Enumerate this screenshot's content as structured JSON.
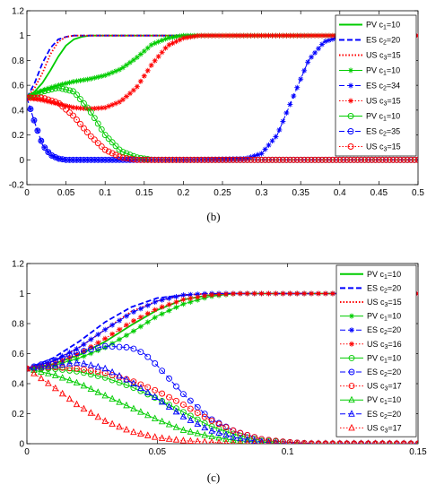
{
  "chart_data": [
    {
      "type": "line",
      "caption": "(b)",
      "xlim": [
        0,
        0.5
      ],
      "ylim": [
        -0.2,
        1.2
      ],
      "x_ticks": [
        "0",
        "0.05",
        "0.1",
        "0.15",
        "0.2",
        "0.25",
        "0.3",
        "0.35",
        "0.4",
        "0.45",
        "0.5"
      ],
      "y_ticks": [
        "-0.2",
        "0",
        "0.2",
        "0.4",
        "0.6",
        "0.8",
        "1",
        "1.2"
      ],
      "grid": false,
      "legend_position": "top-right",
      "series": [
        {
          "name": "PV c1=10",
          "label_main": "PV c",
          "label_sub": "1",
          "label_value": "=10",
          "color": "#00cc00",
          "dash": "solid",
          "marker": "none",
          "x": [
            0,
            0.01,
            0.02,
            0.03,
            0.04,
            0.05,
            0.06,
            0.07,
            0.08,
            0.1,
            0.15,
            0.2,
            0.3,
            0.4,
            0.5
          ],
          "y": [
            0.5,
            0.55,
            0.62,
            0.72,
            0.83,
            0.92,
            0.97,
            0.99,
            1,
            1,
            1,
            1,
            1,
            1,
            1
          ]
        },
        {
          "name": "ES c2=20",
          "label_main": "ES c",
          "label_sub": "2",
          "label_value": "=20",
          "color": "#0000ff",
          "dash": "dashed",
          "marker": "none",
          "x": [
            0,
            0.01,
            0.02,
            0.03,
            0.04,
            0.05,
            0.06,
            0.08,
            0.1,
            0.2,
            0.3,
            0.4,
            0.5
          ],
          "y": [
            0.5,
            0.62,
            0.78,
            0.9,
            0.97,
            0.99,
            1,
            1,
            1,
            1,
            1,
            1,
            1
          ]
        },
        {
          "name": "US c3=15",
          "label_main": "US c",
          "label_sub": "3",
          "label_value": "=15",
          "color": "#ff0000",
          "dash": "dotted",
          "marker": "none",
          "x": [
            0,
            0.01,
            0.02,
            0.03,
            0.04,
            0.05,
            0.06,
            0.08,
            0.1,
            0.2,
            0.3,
            0.4,
            0.5
          ],
          "y": [
            0.5,
            0.58,
            0.7,
            0.85,
            0.95,
            0.99,
            1,
            1,
            1,
            1,
            1,
            1,
            1
          ]
        },
        {
          "name": "PV c1=10",
          "label_main": "PV c",
          "label_sub": "1",
          "label_value": "=10",
          "color": "#00cc00",
          "dash": "solid",
          "marker": "star",
          "x": [
            0,
            0.02,
            0.04,
            0.06,
            0.08,
            0.1,
            0.12,
            0.14,
            0.16,
            0.18,
            0.2,
            0.25,
            0.3,
            0.4,
            0.5
          ],
          "y": [
            0.5,
            0.56,
            0.6,
            0.63,
            0.65,
            0.68,
            0.73,
            0.82,
            0.93,
            0.98,
            1,
            1,
            1,
            1,
            1
          ]
        },
        {
          "name": "ES c2=34",
          "label_main": "ES c",
          "label_sub": "2",
          "label_value": "=34",
          "color": "#0000ff",
          "dash": "dashed",
          "marker": "star",
          "x": [
            0,
            0.01,
            0.02,
            0.03,
            0.04,
            0.05,
            0.1,
            0.2,
            0.28,
            0.3,
            0.32,
            0.34,
            0.36,
            0.38,
            0.4,
            0.42,
            0.45,
            0.5
          ],
          "y": [
            0.5,
            0.3,
            0.12,
            0.04,
            0.01,
            0,
            0,
            0,
            0.01,
            0.05,
            0.2,
            0.5,
            0.8,
            0.95,
            0.99,
            1,
            1,
            1
          ]
        },
        {
          "name": "US c3=15",
          "label_main": "US c",
          "label_sub": "3",
          "label_value": "=15",
          "color": "#ff0000",
          "dash": "dotted",
          "marker": "star",
          "x": [
            0,
            0.02,
            0.04,
            0.06,
            0.08,
            0.1,
            0.12,
            0.14,
            0.16,
            0.18,
            0.2,
            0.22,
            0.25,
            0.3,
            0.5
          ],
          "y": [
            0.5,
            0.48,
            0.45,
            0.42,
            0.41,
            0.42,
            0.47,
            0.58,
            0.77,
            0.92,
            0.98,
            1,
            1,
            1,
            1
          ]
        },
        {
          "name": "PV c1=10",
          "label_main": "PV c",
          "label_sub": "1",
          "label_value": "=10",
          "color": "#00cc00",
          "dash": "solid",
          "marker": "circle",
          "x": [
            0,
            0.02,
            0.04,
            0.06,
            0.08,
            0.1,
            0.12,
            0.14,
            0.16,
            0.2,
            0.3,
            0.4,
            0.5
          ],
          "y": [
            0.5,
            0.55,
            0.58,
            0.55,
            0.4,
            0.2,
            0.07,
            0.02,
            0,
            0,
            0,
            0,
            0
          ]
        },
        {
          "name": "ES c2=35",
          "label_main": "ES c",
          "label_sub": "2",
          "label_value": "=35",
          "color": "#0000ff",
          "dash": "dashed",
          "marker": "circle",
          "x": [
            0,
            0.01,
            0.02,
            0.03,
            0.04,
            0.05,
            0.1,
            0.2,
            0.3,
            0.4,
            0.5
          ],
          "y": [
            0.5,
            0.3,
            0.12,
            0.04,
            0.01,
            0,
            0,
            0,
            0,
            0,
            0
          ]
        },
        {
          "name": "US c3=15",
          "label_main": "US c",
          "label_sub": "3",
          "label_value": "=15",
          "color": "#ff0000",
          "dash": "dotted",
          "marker": "circle",
          "x": [
            0,
            0.02,
            0.04,
            0.06,
            0.08,
            0.1,
            0.12,
            0.14,
            0.16,
            0.2,
            0.3,
            0.4,
            0.5
          ],
          "y": [
            0.5,
            0.5,
            0.46,
            0.35,
            0.2,
            0.08,
            0.02,
            0,
            0,
            0,
            0,
            0,
            0
          ]
        }
      ]
    },
    {
      "type": "line",
      "caption": "(c)",
      "xlim": [
        0,
        0.15
      ],
      "ylim": [
        0,
        1.2
      ],
      "x_ticks": [
        "0",
        "0.05",
        "0.1",
        "0.15"
      ],
      "y_ticks": [
        "0",
        "0.2",
        "0.4",
        "0.6",
        "0.8",
        "1",
        "1.2"
      ],
      "grid": false,
      "legend_position": "top-right",
      "series": [
        {
          "name": "PV c1=10",
          "label_main": "PV c",
          "label_sub": "1",
          "label_value": "=10",
          "color": "#00cc00",
          "dash": "solid",
          "marker": "none",
          "x": [
            0,
            0.01,
            0.02,
            0.03,
            0.04,
            0.05,
            0.06,
            0.07,
            0.08,
            0.09,
            0.1,
            0.12,
            0.15
          ],
          "y": [
            0.5,
            0.53,
            0.59,
            0.68,
            0.79,
            0.89,
            0.96,
            0.99,
            1,
            1,
            1,
            1,
            1
          ]
        },
        {
          "name": "ES c2=20",
          "label_main": "ES c",
          "label_sub": "2",
          "label_value": "=20",
          "color": "#0000ff",
          "dash": "dashed",
          "marker": "none",
          "x": [
            0,
            0.01,
            0.02,
            0.03,
            0.04,
            0.05,
            0.06,
            0.07,
            0.08,
            0.1,
            0.12,
            0.15
          ],
          "y": [
            0.5,
            0.57,
            0.68,
            0.81,
            0.91,
            0.97,
            0.99,
            1,
            1,
            1,
            1,
            1
          ]
        },
        {
          "name": "US c3=15",
          "label_main": "US c",
          "label_sub": "3",
          "label_value": "=15",
          "color": "#ff0000",
          "dash": "dotted",
          "marker": "none",
          "x": [
            0,
            0.01,
            0.02,
            0.03,
            0.04,
            0.05,
            0.06,
            0.07,
            0.08,
            0.1,
            0.12,
            0.15
          ],
          "y": [
            0.5,
            0.55,
            0.64,
            0.76,
            0.88,
            0.95,
            0.99,
            1,
            1,
            1,
            1,
            1
          ]
        },
        {
          "name": "PV c1=10",
          "label_main": "PV c",
          "label_sub": "1",
          "label_value": "=10",
          "color": "#00cc00",
          "dash": "solid",
          "marker": "star",
          "x": [
            0,
            0.01,
            0.02,
            0.03,
            0.04,
            0.05,
            0.06,
            0.07,
            0.08,
            0.09,
            0.1,
            0.12,
            0.15
          ],
          "y": [
            0.5,
            0.52,
            0.57,
            0.64,
            0.74,
            0.85,
            0.93,
            0.98,
            1,
            1,
            1,
            1,
            1
          ]
        },
        {
          "name": "ES c2=20",
          "label_main": "ES c",
          "label_sub": "2",
          "label_value": "=20",
          "color": "#0000ff",
          "dash": "dashed",
          "marker": "star",
          "x": [
            0,
            0.01,
            0.02,
            0.03,
            0.04,
            0.05,
            0.06,
            0.07,
            0.08,
            0.1,
            0.12,
            0.15
          ],
          "y": [
            0.5,
            0.55,
            0.64,
            0.76,
            0.87,
            0.95,
            0.99,
            1,
            1,
            1,
            1,
            1
          ]
        },
        {
          "name": "US c3=16",
          "label_main": "US c",
          "label_sub": "3",
          "label_value": "=16",
          "color": "#ff0000",
          "dash": "dotted",
          "marker": "star",
          "x": [
            0,
            0.01,
            0.02,
            0.03,
            0.04,
            0.05,
            0.06,
            0.07,
            0.08,
            0.09,
            0.1,
            0.12,
            0.15
          ],
          "y": [
            0.5,
            0.53,
            0.6,
            0.7,
            0.81,
            0.9,
            0.96,
            0.99,
            1,
            1,
            1,
            1,
            1
          ]
        },
        {
          "name": "PV c1=10",
          "label_main": "PV c",
          "label_sub": "1",
          "label_value": "=10",
          "color": "#00cc00",
          "dash": "solid",
          "marker": "circle",
          "x": [
            0,
            0.01,
            0.02,
            0.03,
            0.04,
            0.05,
            0.06,
            0.07,
            0.08,
            0.09,
            0.1,
            0.11,
            0.12,
            0.15
          ],
          "y": [
            0.5,
            0.5,
            0.48,
            0.44,
            0.38,
            0.3,
            0.21,
            0.12,
            0.06,
            0.02,
            0.01,
            0,
            0,
            0
          ]
        },
        {
          "name": "ES c2=20",
          "label_main": "ES c",
          "label_sub": "2",
          "label_value": "=20",
          "color": "#0000ff",
          "dash": "dashed",
          "marker": "circle",
          "x": [
            0,
            0.01,
            0.02,
            0.03,
            0.04,
            0.045,
            0.05,
            0.06,
            0.07,
            0.08,
            0.09,
            0.1,
            0.11,
            0.12,
            0.15
          ],
          "y": [
            0.5,
            0.55,
            0.61,
            0.65,
            0.64,
            0.6,
            0.52,
            0.33,
            0.17,
            0.08,
            0.03,
            0.01,
            0,
            0,
            0
          ]
        },
        {
          "name": "US c3=17",
          "label_main": "US c",
          "label_sub": "3",
          "label_value": "=17",
          "color": "#ff0000",
          "dash": "dotted",
          "marker": "circle",
          "x": [
            0,
            0.01,
            0.02,
            0.03,
            0.04,
            0.05,
            0.06,
            0.07,
            0.08,
            0.09,
            0.1,
            0.11,
            0.12,
            0.15
          ],
          "y": [
            0.5,
            0.51,
            0.5,
            0.47,
            0.42,
            0.35,
            0.26,
            0.16,
            0.08,
            0.03,
            0.01,
            0,
            0,
            0
          ]
        },
        {
          "name": "PV c1=10",
          "label_main": "PV c",
          "label_sub": "1",
          "label_value": "=10",
          "color": "#00cc00",
          "dash": "solid",
          "marker": "triangle",
          "x": [
            0,
            0.01,
            0.02,
            0.03,
            0.04,
            0.05,
            0.06,
            0.07,
            0.08,
            0.09,
            0.1,
            0.12,
            0.15
          ],
          "y": [
            0.5,
            0.46,
            0.4,
            0.32,
            0.24,
            0.16,
            0.09,
            0.05,
            0.02,
            0.01,
            0,
            0,
            0
          ]
        },
        {
          "name": "ES c2=20",
          "label_main": "ES c",
          "label_sub": "2",
          "label_value": "=20",
          "color": "#0000ff",
          "dash": "dashed",
          "marker": "triangle",
          "x": [
            0,
            0.01,
            0.02,
            0.03,
            0.04,
            0.05,
            0.06,
            0.07,
            0.08,
            0.09,
            0.1,
            0.12,
            0.15
          ],
          "y": [
            0.5,
            0.52,
            0.54,
            0.5,
            0.41,
            0.3,
            0.18,
            0.09,
            0.04,
            0.01,
            0,
            0,
            0
          ]
        },
        {
          "name": "US c3=17",
          "label_main": "US c",
          "label_sub": "3",
          "label_value": "=17",
          "color": "#ff0000",
          "dash": "dotted",
          "marker": "triangle",
          "x": [
            0,
            0.01,
            0.02,
            0.03,
            0.04,
            0.05,
            0.06,
            0.07,
            0.08,
            0.1,
            0.12,
            0.15
          ],
          "y": [
            0.5,
            0.38,
            0.25,
            0.15,
            0.08,
            0.04,
            0.02,
            0.01,
            0,
            0,
            0,
            0
          ]
        }
      ]
    }
  ]
}
